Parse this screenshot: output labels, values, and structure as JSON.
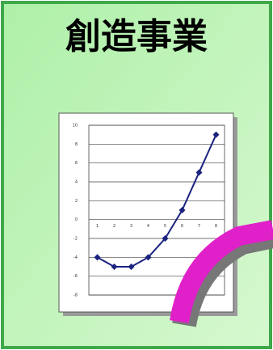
{
  "title": "創造事業",
  "chart_data": {
    "type": "line",
    "categories": [
      "1",
      "2",
      "3",
      "4",
      "5",
      "6",
      "7",
      "8"
    ],
    "series": [
      {
        "color": "#1a237e",
        "values": [
          -4,
          -5,
          -5,
          -4,
          -2,
          1,
          5,
          9
        ]
      }
    ],
    "ylim": [
      -8,
      10
    ],
    "yticks": [
      -8,
      -6,
      -4,
      -2,
      0,
      2,
      4,
      6,
      8,
      10
    ],
    "grid": true
  }
}
